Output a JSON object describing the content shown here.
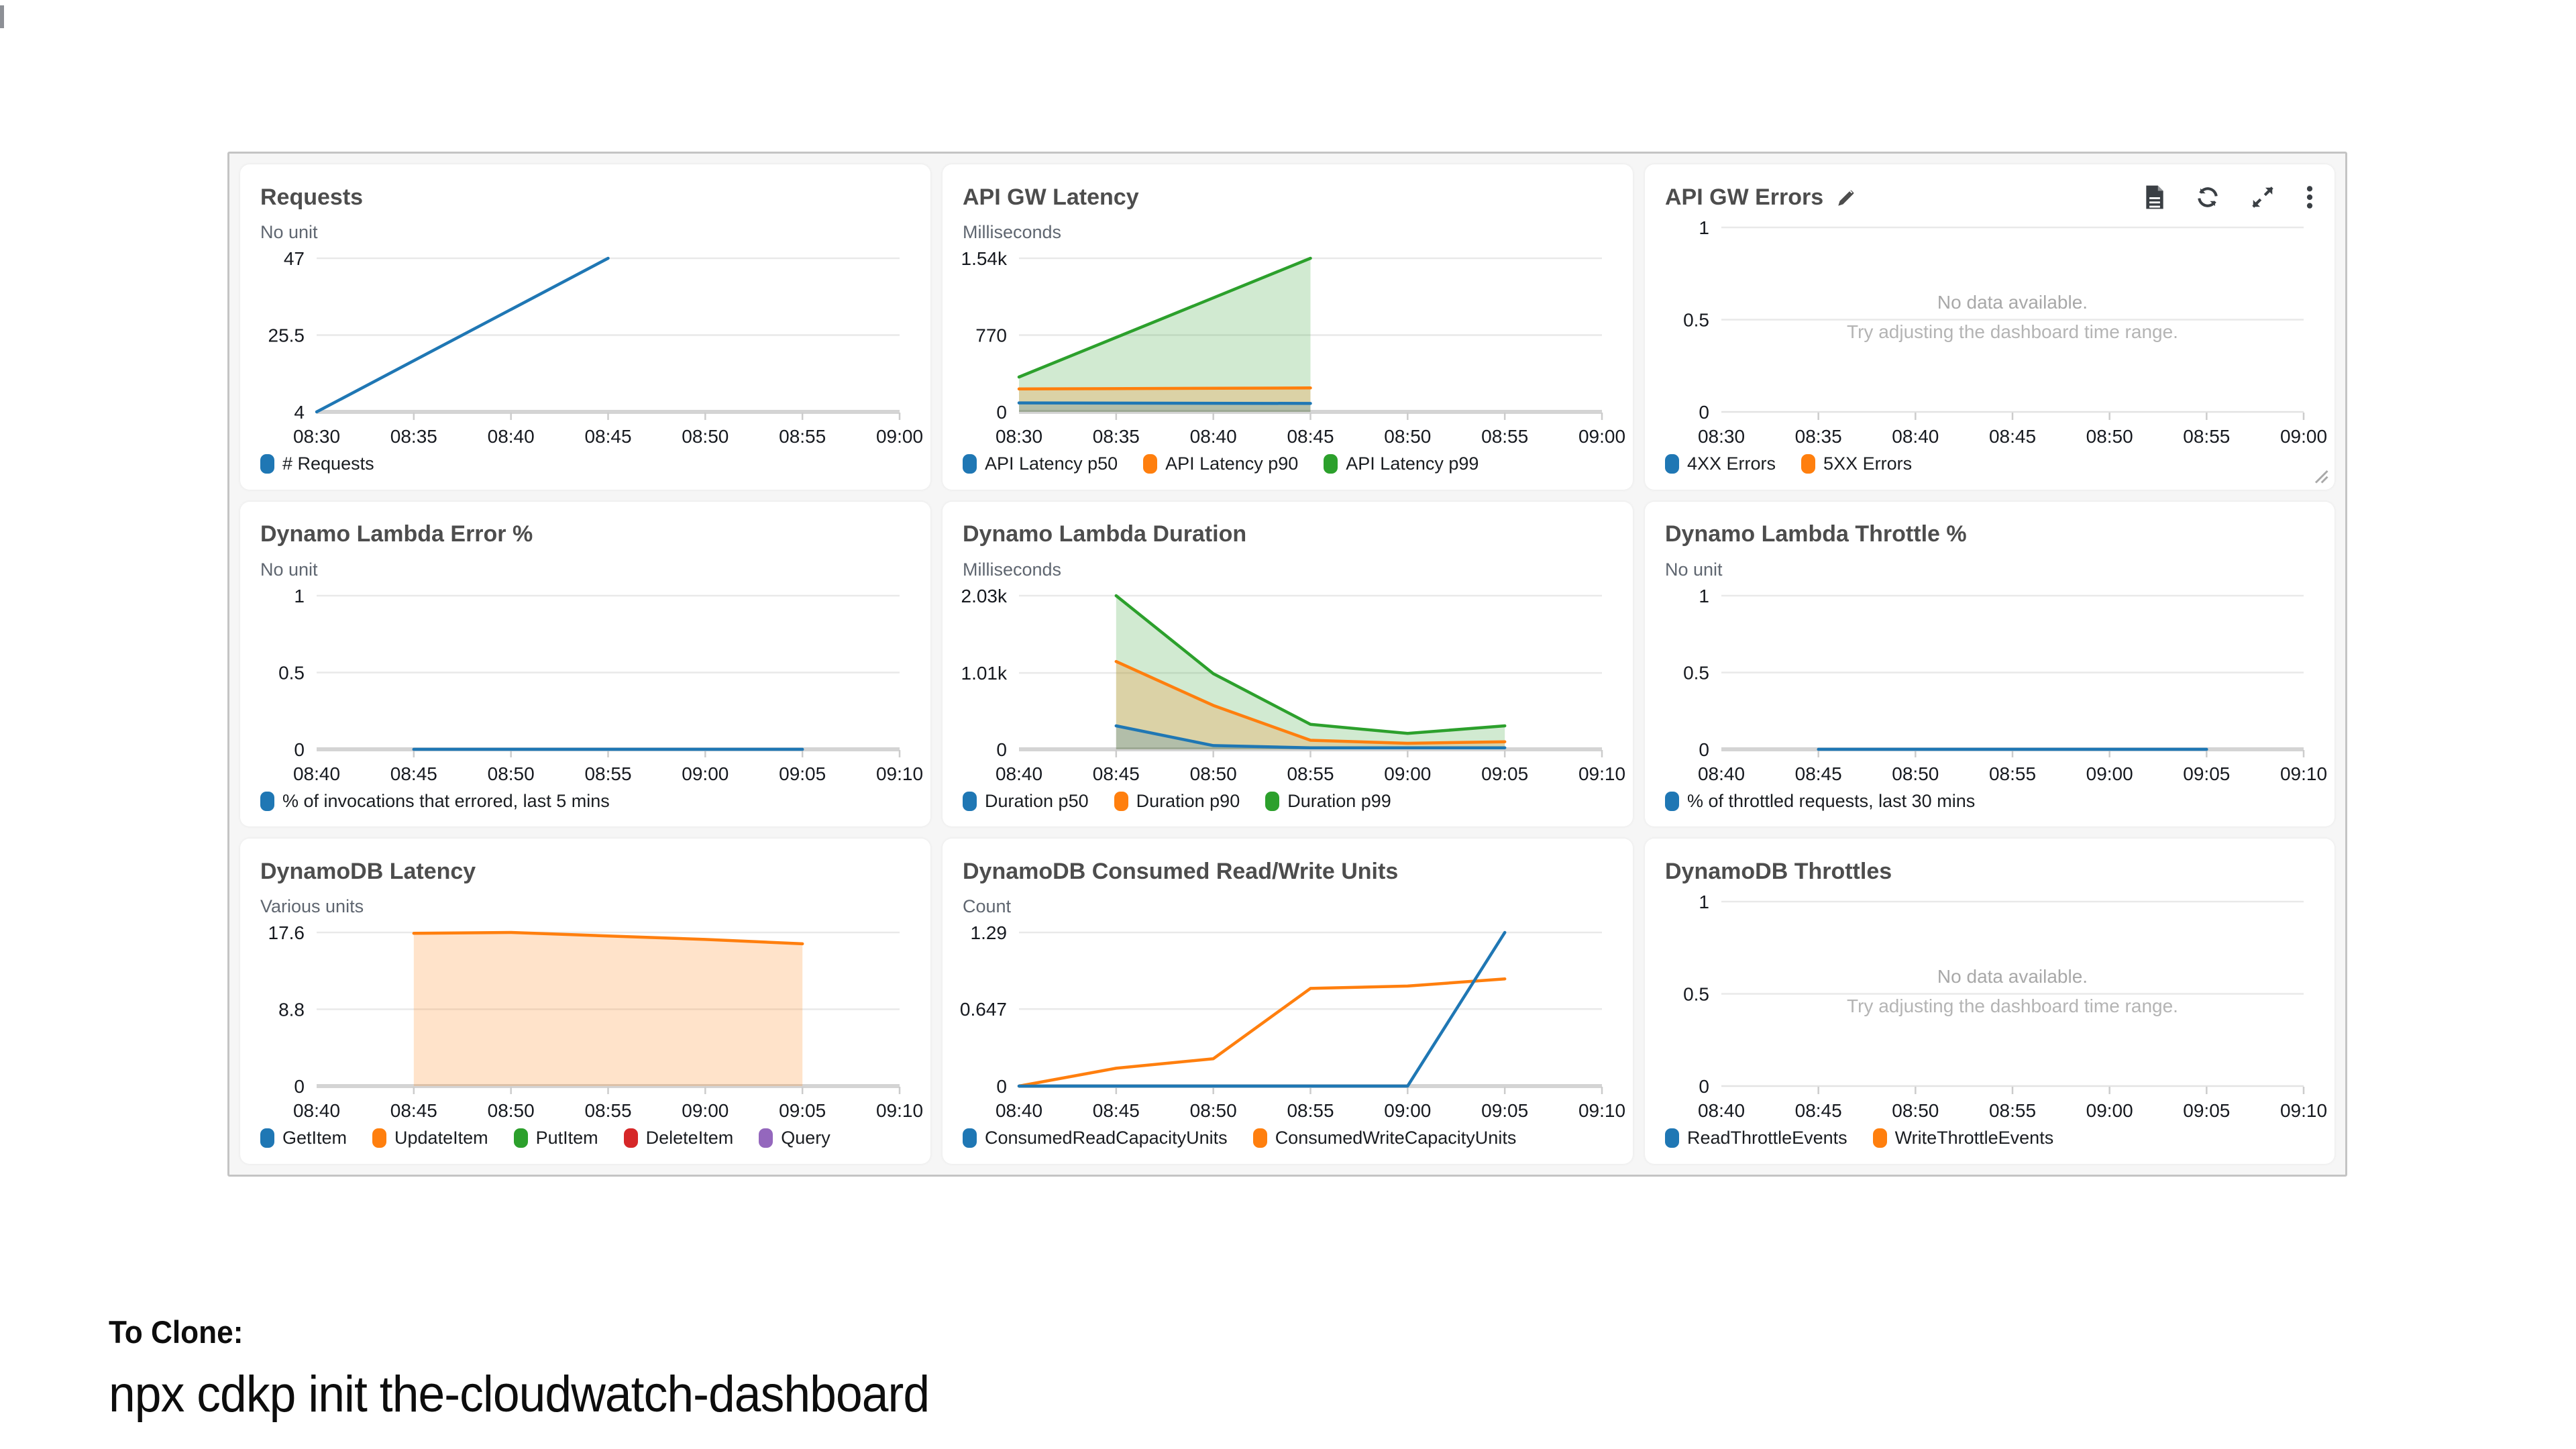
{
  "colors": {
    "blue": "#1f77b4",
    "orange": "#ff7f0e",
    "green": "#2ca02c",
    "red": "#d62728",
    "purple": "#9467bd"
  },
  "no_data": {
    "line1": "No data available.",
    "line2": "Try adjusting the dashboard time range."
  },
  "footer": {
    "line1": "To Clone:",
    "line2": "npx cdkp init the-cloudwatch-dashboard"
  },
  "dashboard": {
    "panels": [
      {
        "slug": "requests",
        "title": "Requests",
        "unit": "No unit",
        "legend": [
          {
            "label": "# Requests",
            "color": "#1f77b4"
          }
        ],
        "chart_data": {
          "type": "line",
          "no_data": false,
          "x_ticks": [
            "08:30",
            "08:35",
            "08:40",
            "08:45",
            "08:50",
            "08:55",
            "09:00"
          ],
          "y_ticks": [
            {
              "v": 4,
              "label": "4"
            },
            {
              "v": 25.5,
              "label": "25.5"
            },
            {
              "v": 47,
              "label": "47"
            }
          ],
          "y_min": 4,
          "y_max": 47,
          "series": [
            {
              "name": "# Requests",
              "color": "#1f77b4",
              "fill": false,
              "points": [
                [
                  0,
                  4
                ],
                [
                  3,
                  47
                ]
              ]
            }
          ]
        }
      },
      {
        "slug": "api-gw-latency",
        "title": "API GW Latency",
        "unit": "Milliseconds",
        "legend": [
          {
            "label": "API Latency p50",
            "color": "#1f77b4"
          },
          {
            "label": "API Latency p90",
            "color": "#ff7f0e"
          },
          {
            "label": "API Latency p99",
            "color": "#2ca02c"
          }
        ],
        "chart_data": {
          "type": "area",
          "no_data": false,
          "x_ticks": [
            "08:30",
            "08:35",
            "08:40",
            "08:45",
            "08:50",
            "08:55",
            "09:00"
          ],
          "y_ticks": [
            {
              "v": 0,
              "label": "0"
            },
            {
              "v": 770,
              "label": "770"
            },
            {
              "v": 1540,
              "label": "1.54k"
            }
          ],
          "y_min": 0,
          "y_max": 1540,
          "series": [
            {
              "name": "API Latency p99",
              "color": "#2ca02c",
              "fill": true,
              "points": [
                [
                  0,
                  350
                ],
                [
                  3,
                  1540
                ]
              ]
            },
            {
              "name": "API Latency p90",
              "color": "#ff7f0e",
              "fill": true,
              "points": [
                [
                  0,
                  230
                ],
                [
                  3,
                  240
                ]
              ]
            },
            {
              "name": "API Latency p50",
              "color": "#1f77b4",
              "fill": true,
              "points": [
                [
                  0,
                  90
                ],
                [
                  3,
                  85
                ]
              ]
            }
          ]
        }
      },
      {
        "slug": "api-gw-errors",
        "title": "API GW Errors",
        "unit": null,
        "has_edit_icon": true,
        "toolbar": [
          {
            "name": "logs-button",
            "icon": "document-icon"
          },
          {
            "name": "refresh-button",
            "icon": "refresh-icon"
          },
          {
            "name": "enlarge-button",
            "icon": "expand-icon"
          },
          {
            "name": "widget-menu-button",
            "icon": "kebab-menu-icon"
          }
        ],
        "has_resize_handle": true,
        "legend": [
          {
            "label": "4XX Errors",
            "color": "#1f77b4"
          },
          {
            "label": "5XX Errors",
            "color": "#ff7f0e"
          }
        ],
        "chart_data": {
          "type": "line",
          "no_data": true,
          "x_ticks": [
            "08:30",
            "08:35",
            "08:40",
            "08:45",
            "08:50",
            "08:55",
            "09:00"
          ],
          "y_ticks": [
            {
              "v": 0,
              "label": "0"
            },
            {
              "v": 0.5,
              "label": "0.5"
            },
            {
              "v": 1,
              "label": "1"
            }
          ],
          "y_min": 0,
          "y_max": 1,
          "series": []
        }
      },
      {
        "slug": "dynamo-lambda-error-pct",
        "title": "Dynamo Lambda Error %",
        "unit": "No unit",
        "legend": [
          {
            "label": "% of invocations that errored, last 5 mins",
            "color": "#1f77b4"
          }
        ],
        "chart_data": {
          "type": "line",
          "no_data": false,
          "x_ticks": [
            "08:40",
            "08:45",
            "08:50",
            "08:55",
            "09:00",
            "09:05",
            "09:10"
          ],
          "y_ticks": [
            {
              "v": 0,
              "label": "0"
            },
            {
              "v": 0.5,
              "label": "0.5"
            },
            {
              "v": 1,
              "label": "1"
            }
          ],
          "y_min": 0,
          "y_max": 1,
          "series": [
            {
              "name": "% of invocations that errored, last 5 mins",
              "color": "#1f77b4",
              "fill": false,
              "points": [
                [
                  1,
                  0
                ],
                [
                  2,
                  0
                ],
                [
                  3,
                  0
                ],
                [
                  4,
                  0
                ],
                [
                  5,
                  0
                ]
              ]
            }
          ]
        }
      },
      {
        "slug": "dynamo-lambda-duration",
        "title": "Dynamo Lambda Duration",
        "unit": "Milliseconds",
        "legend": [
          {
            "label": "Duration p50",
            "color": "#1f77b4"
          },
          {
            "label": "Duration p90",
            "color": "#ff7f0e"
          },
          {
            "label": "Duration p99",
            "color": "#2ca02c"
          }
        ],
        "chart_data": {
          "type": "area",
          "no_data": false,
          "x_ticks": [
            "08:40",
            "08:45",
            "08:50",
            "08:55",
            "09:00",
            "09:05",
            "09:10"
          ],
          "y_ticks": [
            {
              "v": 0,
              "label": "0"
            },
            {
              "v": 1010,
              "label": "1.01k"
            },
            {
              "v": 2030,
              "label": "2.03k"
            }
          ],
          "y_min": 0,
          "y_max": 2030,
          "series": [
            {
              "name": "Duration p99",
              "color": "#2ca02c",
              "fill": true,
              "points": [
                [
                  1,
                  2030
                ],
                [
                  2,
                  1000
                ],
                [
                  3,
                  330
                ],
                [
                  4,
                  210
                ],
                [
                  5,
                  310
                ]
              ]
            },
            {
              "name": "Duration p90",
              "color": "#ff7f0e",
              "fill": true,
              "points": [
                [
                  1,
                  1160
                ],
                [
                  2,
                  580
                ],
                [
                  3,
                  120
                ],
                [
                  4,
                  80
                ],
                [
                  5,
                  100
                ]
              ]
            },
            {
              "name": "Duration p50",
              "color": "#1f77b4",
              "fill": true,
              "points": [
                [
                  1,
                  310
                ],
                [
                  2,
                  50
                ],
                [
                  3,
                  20
                ],
                [
                  4,
                  20
                ],
                [
                  5,
                  20
                ]
              ]
            }
          ]
        }
      },
      {
        "slug": "dynamo-lambda-throttle-pct",
        "title": "Dynamo Lambda Throttle %",
        "unit": "No unit",
        "legend": [
          {
            "label": "% of throttled requests, last 30 mins",
            "color": "#1f77b4"
          }
        ],
        "chart_data": {
          "type": "line",
          "no_data": false,
          "x_ticks": [
            "08:40",
            "08:45",
            "08:50",
            "08:55",
            "09:00",
            "09:05",
            "09:10"
          ],
          "y_ticks": [
            {
              "v": 0,
              "label": "0"
            },
            {
              "v": 0.5,
              "label": "0.5"
            },
            {
              "v": 1,
              "label": "1"
            }
          ],
          "y_min": 0,
          "y_max": 1,
          "series": [
            {
              "name": "% of throttled requests, last 30 mins",
              "color": "#1f77b4",
              "fill": false,
              "points": [
                [
                  1,
                  0
                ],
                [
                  2,
                  0
                ],
                [
                  3,
                  0
                ],
                [
                  4,
                  0
                ],
                [
                  5,
                  0
                ]
              ]
            }
          ]
        }
      },
      {
        "slug": "dynamodb-latency",
        "title": "DynamoDB Latency",
        "unit": "Various units",
        "legend": [
          {
            "label": "GetItem",
            "color": "#1f77b4"
          },
          {
            "label": "UpdateItem",
            "color": "#ff7f0e"
          },
          {
            "label": "PutItem",
            "color": "#2ca02c"
          },
          {
            "label": "DeleteItem",
            "color": "#d62728"
          },
          {
            "label": "Query",
            "color": "#9467bd"
          }
        ],
        "chart_data": {
          "type": "area",
          "no_data": false,
          "x_ticks": [
            "08:40",
            "08:45",
            "08:50",
            "08:55",
            "09:00",
            "09:05",
            "09:10"
          ],
          "y_ticks": [
            {
              "v": 0,
              "label": "0"
            },
            {
              "v": 8.8,
              "label": "8.8"
            },
            {
              "v": 17.6,
              "label": "17.6"
            }
          ],
          "y_min": 0,
          "y_max": 17.6,
          "series": [
            {
              "name": "UpdateItem",
              "color": "#ff7f0e",
              "fill": true,
              "points": [
                [
                  1,
                  17.5
                ],
                [
                  2,
                  17.6
                ],
                [
                  3,
                  17.2
                ],
                [
                  4,
                  16.8
                ],
                [
                  5,
                  16.3
                ]
              ]
            }
          ]
        }
      },
      {
        "slug": "dynamodb-consumed-read-write-units",
        "title": "DynamoDB Consumed Read/Write Units",
        "unit": "Count",
        "legend": [
          {
            "label": "ConsumedReadCapacityUnits",
            "color": "#1f77b4"
          },
          {
            "label": "ConsumedWriteCapacityUnits",
            "color": "#ff7f0e"
          }
        ],
        "chart_data": {
          "type": "line",
          "no_data": false,
          "x_ticks": [
            "08:40",
            "08:45",
            "08:50",
            "08:55",
            "09:00",
            "09:05",
            "09:10"
          ],
          "y_ticks": [
            {
              "v": 0,
              "label": "0"
            },
            {
              "v": 0.647,
              "label": "0.647"
            },
            {
              "v": 1.29,
              "label": "1.29"
            }
          ],
          "y_min": 0,
          "y_max": 1.29,
          "series": [
            {
              "name": "ConsumedWriteCapacityUnits",
              "color": "#ff7f0e",
              "fill": false,
              "points": [
                [
                  0,
                  0
                ],
                [
                  1,
                  0.15
                ],
                [
                  2,
                  0.23
                ],
                [
                  3,
                  0.82
                ],
                [
                  4,
                  0.84
                ],
                [
                  5,
                  0.9
                ]
              ]
            },
            {
              "name": "ConsumedReadCapacityUnits",
              "color": "#1f77b4",
              "fill": false,
              "points": [
                [
                  0,
                  0
                ],
                [
                  1,
                  0
                ],
                [
                  2,
                  0
                ],
                [
                  3,
                  0
                ],
                [
                  4,
                  0
                ],
                [
                  5,
                  1.29
                ]
              ]
            }
          ]
        }
      },
      {
        "slug": "dynamodb-throttles",
        "title": "DynamoDB Throttles",
        "unit": null,
        "legend": [
          {
            "label": "ReadThrottleEvents",
            "color": "#1f77b4"
          },
          {
            "label": "WriteThrottleEvents",
            "color": "#ff7f0e"
          }
        ],
        "chart_data": {
          "type": "line",
          "no_data": true,
          "x_ticks": [
            "08:40",
            "08:45",
            "08:50",
            "08:55",
            "09:00",
            "09:05",
            "09:10"
          ],
          "y_ticks": [
            {
              "v": 0,
              "label": "0"
            },
            {
              "v": 0.5,
              "label": "0.5"
            },
            {
              "v": 1,
              "label": "1"
            }
          ],
          "y_min": 0,
          "y_max": 1,
          "series": []
        }
      }
    ]
  }
}
